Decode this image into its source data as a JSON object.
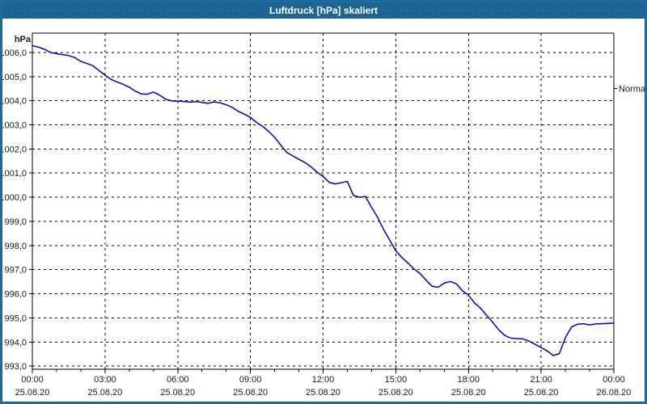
{
  "window": {
    "title": "Luftdruck [hPa] skaliert"
  },
  "colors": {
    "titlebar": "#1d6a9b",
    "window_border": "#1d6a9b",
    "line": "#0000bd",
    "grid": "#000000",
    "axis": "#000000",
    "text": "#1a1a1a",
    "plot_background": "#ffffff"
  },
  "chart_data": {
    "type": "line",
    "title": "Luftdruck [hPa] skaliert",
    "xlabel": "",
    "ylabel": "hPa",
    "series_name": "Luftdruck",
    "grid": "dashed",
    "xlim": [
      0,
      24
    ],
    "ylim": [
      992.87,
      1006.8
    ],
    "x_unit": "hours",
    "x": [
      0,
      0.25,
      0.5,
      0.75,
      1,
      1.25,
      1.5,
      1.75,
      2,
      2.25,
      2.5,
      2.75,
      3,
      3.25,
      3.5,
      3.75,
      4,
      4.25,
      4.5,
      4.75,
      5,
      5.25,
      5.5,
      5.75,
      6,
      6.25,
      6.5,
      6.75,
      7,
      7.25,
      7.5,
      7.75,
      8,
      8.25,
      8.5,
      8.75,
      9,
      9.25,
      9.5,
      9.75,
      10,
      10.25,
      10.5,
      10.75,
      11,
      11.25,
      11.5,
      11.75,
      12,
      12.25,
      12.5,
      12.75,
      13,
      13.25,
      13.5,
      13.75,
      14,
      14.25,
      14.5,
      14.75,
      15,
      15.25,
      15.5,
      15.75,
      16,
      16.25,
      16.5,
      16.75,
      17,
      17.25,
      17.5,
      17.75,
      18,
      18.25,
      18.5,
      18.75,
      19,
      19.25,
      19.5,
      19.75,
      20,
      20.25,
      20.5,
      20.75,
      21,
      21.25,
      21.5,
      21.75,
      22,
      22.25,
      22.5,
      22.75,
      23,
      23.25,
      23.5,
      23.75,
      24
    ],
    "values": [
      1006.28,
      1006.22,
      1006.13,
      1006.0,
      1005.95,
      1005.91,
      1005.87,
      1005.79,
      1005.63,
      1005.54,
      1005.45,
      1005.25,
      1005.06,
      1004.88,
      1004.77,
      1004.68,
      1004.56,
      1004.4,
      1004.28,
      1004.27,
      1004.36,
      1004.23,
      1004.06,
      1003.99,
      1003.98,
      1003.97,
      1003.94,
      1003.96,
      1003.93,
      1003.89,
      1003.95,
      1003.91,
      1003.83,
      1003.72,
      1003.56,
      1003.44,
      1003.31,
      1003.1,
      1002.94,
      1002.73,
      1002.48,
      1002.16,
      1001.86,
      1001.71,
      1001.57,
      1001.44,
      1001.26,
      1001.04,
      1000.86,
      1000.62,
      1000.55,
      1000.6,
      1000.66,
      1000.08,
      1000.0,
      1000.03,
      999.58,
      999.17,
      998.66,
      998.22,
      997.78,
      997.5,
      997.27,
      997.03,
      996.84,
      996.56,
      996.31,
      996.27,
      996.44,
      996.51,
      996.41,
      996.12,
      995.94,
      995.62,
      995.4,
      995.1,
      994.82,
      994.5,
      994.27,
      994.16,
      994.14,
      994.13,
      994.04,
      993.9,
      993.77,
      993.63,
      993.44,
      993.52,
      994.18,
      994.62,
      994.74,
      994.76,
      994.71,
      994.75,
      994.76,
      994.77,
      994.78
    ],
    "y_ticks": [
      {
        "value": 1006.0,
        "label": "1006,0"
      },
      {
        "value": 1005.0,
        "label": "1005,0"
      },
      {
        "value": 1004.0,
        "label": "1004,0"
      },
      {
        "value": 1003.0,
        "label": "1003,0"
      },
      {
        "value": 1002.0,
        "label": "1002,0"
      },
      {
        "value": 1001.0,
        "label": "1001,0"
      },
      {
        "value": 1000.0,
        "label": "1000,0"
      },
      {
        "value": 999.0,
        "label": "999,0"
      },
      {
        "value": 998.0,
        "label": "998,0"
      },
      {
        "value": 997.0,
        "label": "997,0"
      },
      {
        "value": 996.0,
        "label": "996,0"
      },
      {
        "value": 995.0,
        "label": "995,0"
      },
      {
        "value": 994.0,
        "label": "994,0"
      },
      {
        "value": 993.0,
        "label": "993,0"
      }
    ],
    "x_major_ticks": [
      {
        "value": 0,
        "time": "00:00",
        "date": "25.08.20"
      },
      {
        "value": 3,
        "time": "03:00",
        "date": "25.08.20"
      },
      {
        "value": 6,
        "time": "06:00",
        "date": "25.08.20"
      },
      {
        "value": 9,
        "time": "09:00",
        "date": "25.08.20"
      },
      {
        "value": 12,
        "time": "12:00",
        "date": "25.08.20"
      },
      {
        "value": 15,
        "time": "15:00",
        "date": "25.08.20"
      },
      {
        "value": 18,
        "time": "18:00",
        "date": "25.08.20"
      },
      {
        "value": 21,
        "time": "21:00",
        "date": "25.08.20"
      },
      {
        "value": 24,
        "time": "00:00",
        "date": "26.08.20"
      }
    ],
    "x_minor_ticks": [
      1,
      2,
      4,
      5,
      7,
      8,
      10,
      11,
      13,
      14,
      16,
      17,
      19,
      20,
      22,
      23
    ],
    "annotations": [
      {
        "label": "Normal",
        "value": 1004.5,
        "side": "right"
      }
    ],
    "legend_position": "none"
  }
}
